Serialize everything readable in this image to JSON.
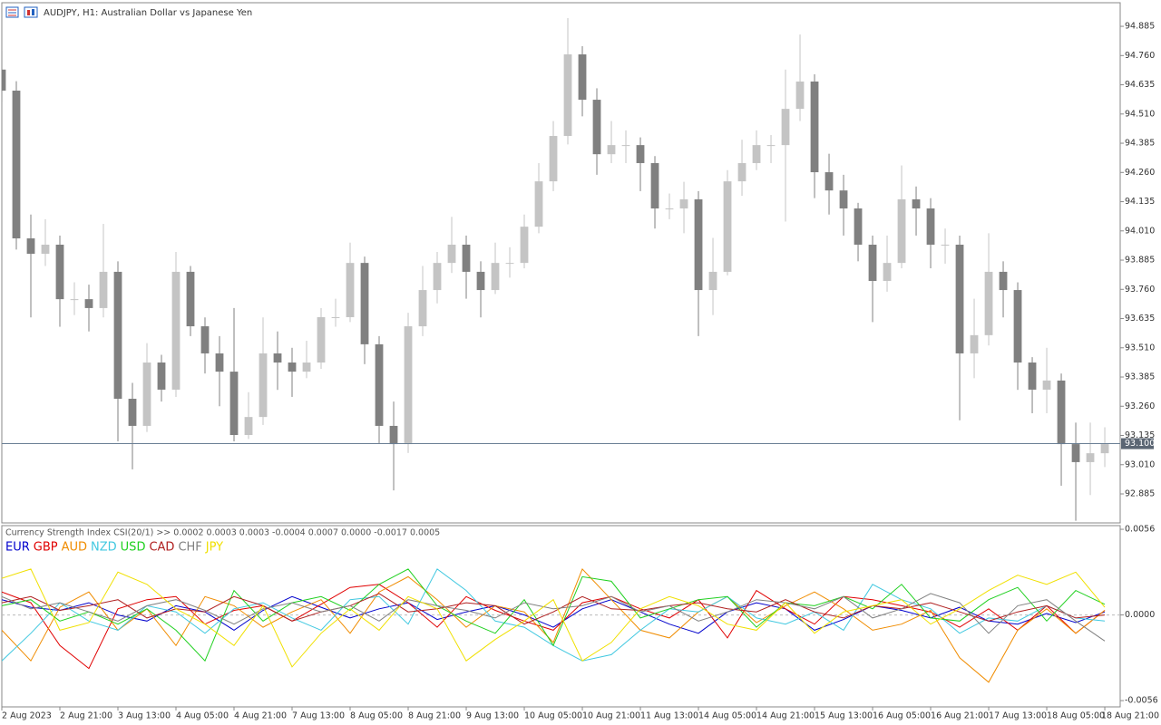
{
  "chart_data": [
    {
      "type": "candlestick",
      "title": "AUDJPY, H1:  Australian Dollar vs Japanese Yen",
      "up_color": "#c4c4c4",
      "down_color": "#808080",
      "open": [
        94.7,
        94.61,
        93.978,
        93.912,
        93.951,
        93.718,
        93.718,
        93.68,
        93.835,
        93.292,
        93.176,
        93.447,
        93.331,
        93.835,
        93.602,
        93.486,
        93.408,
        93.137,
        93.214,
        93.486,
        93.447,
        93.408,
        93.447,
        93.641,
        93.641,
        93.873,
        93.525,
        93.176,
        93.098,
        93.602,
        93.757,
        93.873,
        93.951,
        93.835,
        93.757,
        93.873,
        93.873,
        94.028,
        94.222,
        94.416,
        94.765,
        94.571,
        94.338,
        94.377,
        94.377,
        94.3,
        94.106,
        94.106,
        94.145,
        93.757,
        93.835,
        94.222,
        94.3,
        94.377,
        94.377,
        94.532,
        94.649,
        94.261,
        94.183,
        94.106,
        93.951,
        93.796,
        93.873,
        94.145,
        94.106,
        93.951,
        93.951,
        93.486,
        93.564,
        93.835,
        93.757,
        93.447,
        93.331,
        93.37,
        93.098,
        93.021,
        93.059
      ],
      "high": [
        94.78,
        94.65,
        94.08,
        94.06,
        93.99,
        93.79,
        93.78,
        94.04,
        93.88,
        93.36,
        93.53,
        93.48,
        93.92,
        93.86,
        93.64,
        93.56,
        93.68,
        93.32,
        93.64,
        93.58,
        93.51,
        93.54,
        93.68,
        93.72,
        93.96,
        93.9,
        93.56,
        93.28,
        93.66,
        93.86,
        93.92,
        94.07,
        93.99,
        93.88,
        93.96,
        93.94,
        94.08,
        94.3,
        94.48,
        94.92,
        94.8,
        94.62,
        94.48,
        94.44,
        94.41,
        94.33,
        94.17,
        94.22,
        94.18,
        93.98,
        94.27,
        94.4,
        94.44,
        94.42,
        94.7,
        94.85,
        94.68,
        94.34,
        94.25,
        94.13,
        93.99,
        93.99,
        94.29,
        94.2,
        94.15,
        94.02,
        93.99,
        93.72,
        94.0,
        93.88,
        93.79,
        93.47,
        93.51,
        93.4,
        93.19,
        93.19,
        93.17
      ],
      "low": [
        94.56,
        93.93,
        93.64,
        93.86,
        93.6,
        93.65,
        93.58,
        93.64,
        93.11,
        92.99,
        93.15,
        93.28,
        93.3,
        93.56,
        93.4,
        93.26,
        93.11,
        93.12,
        93.18,
        93.33,
        93.3,
        93.38,
        93.42,
        93.6,
        93.62,
        93.44,
        93.1,
        92.9,
        93.06,
        93.56,
        93.7,
        93.83,
        93.72,
        93.64,
        93.74,
        93.81,
        93.85,
        94.0,
        94.18,
        94.38,
        94.5,
        94.25,
        94.3,
        94.3,
        94.18,
        94.02,
        94.06,
        94.0,
        93.56,
        93.65,
        93.82,
        94.16,
        94.27,
        94.3,
        94.05,
        94.48,
        94.15,
        94.08,
        93.99,
        93.88,
        93.62,
        93.75,
        93.85,
        93.99,
        93.85,
        93.87,
        93.2,
        93.38,
        93.52,
        93.64,
        93.33,
        93.23,
        93.23,
        92.92,
        92.77,
        92.88,
        93.0
      ],
      "close": [
        94.61,
        93.978,
        93.912,
        93.951,
        93.718,
        93.718,
        93.68,
        93.835,
        93.292,
        93.176,
        93.447,
        93.331,
        93.835,
        93.602,
        93.486,
        93.408,
        93.137,
        93.214,
        93.486,
        93.447,
        93.408,
        93.447,
        93.641,
        93.641,
        93.873,
        93.525,
        93.176,
        93.098,
        93.602,
        93.757,
        93.873,
        93.951,
        93.835,
        93.757,
        93.873,
        93.873,
        94.028,
        94.222,
        94.416,
        94.765,
        94.571,
        94.338,
        94.377,
        94.377,
        94.3,
        94.106,
        94.106,
        94.145,
        93.757,
        93.835,
        94.222,
        94.3,
        94.377,
        94.377,
        94.532,
        94.649,
        94.261,
        94.183,
        94.106,
        93.951,
        93.796,
        93.873,
        94.145,
        94.106,
        93.951,
        93.951,
        93.486,
        93.564,
        93.835,
        93.757,
        93.447,
        93.331,
        93.37,
        93.098,
        93.021,
        93.059,
        93.098
      ],
      "xlim": [
        0,
        77.06
      ],
      "ylim": [
        92.761,
        94.986
      ],
      "yticks": [
        94.885,
        {
          "value": 94.76,
          "label": "94.760"
        },
        94.635,
        {
          "value": 94.51,
          "label": "94.510"
        },
        94.385,
        {
          "value": 94.26,
          "label": "94.260"
        },
        94.135,
        {
          "value": 94.01,
          "label": "94.010"
        },
        93.885,
        {
          "value": 93.76,
          "label": "93.760"
        },
        93.635,
        {
          "value": 93.51,
          "label": "93.510"
        },
        93.385,
        {
          "value": 93.26,
          "label": "93.260"
        },
        93.135,
        {
          "value": 93.01,
          "label": "93.010"
        },
        92.885
      ],
      "hline": {
        "value": 93.1,
        "label": "93.100"
      },
      "xticks": [
        {
          "value": 0,
          "label": "2 Aug 2023"
        },
        {
          "value": 4,
          "label": "2 Aug 21:00"
        },
        {
          "value": 8,
          "label": "3 Aug 13:00"
        },
        {
          "value": 12,
          "label": "4 Aug 05:00"
        },
        {
          "value": 16,
          "label": "4 Aug 21:00"
        },
        {
          "value": 20,
          "label": "7 Aug 13:00"
        },
        {
          "value": 24,
          "label": "8 Aug 05:00"
        },
        {
          "value": 28,
          "label": "8 Aug 21:00"
        },
        {
          "value": 32,
          "label": "9 Aug 13:00"
        },
        {
          "value": 36,
          "label": "10 Aug 05:00"
        },
        {
          "value": 40,
          "label": "10 Aug 21:00"
        },
        {
          "value": 44,
          "label": "11 Aug 13:00"
        },
        {
          "value": 48,
          "label": "14 Aug 05:00"
        },
        {
          "value": 52,
          "label": "14 Aug 21:00"
        },
        {
          "value": 56,
          "label": "15 Aug 13:00"
        },
        {
          "value": 60,
          "label": "16 Aug 05:00"
        },
        {
          "value": 64,
          "label": "16 Aug 21:00"
        },
        {
          "value": 68,
          "label": "17 Aug 13:00"
        },
        {
          "value": 72,
          "label": "18 Aug 05:00"
        },
        {
          "value": 76,
          "label": "18 Aug 21:00"
        }
      ]
    },
    {
      "type": "line",
      "title": "Currency Strength Index CSI(20/1) >> 0.0002 0.0003 0.0003 -0.0004 0.0007 0.0000 -0.0017 0.0005",
      "x": [
        0,
        2,
        4,
        6,
        8,
        10,
        12,
        14,
        16,
        18,
        20,
        22,
        24,
        26,
        28,
        30,
        32,
        34,
        36,
        38,
        40,
        42,
        44,
        46,
        48,
        50,
        52,
        54,
        56,
        58,
        60,
        62,
        64,
        66,
        68,
        70,
        72,
        74,
        76
      ],
      "xlim": [
        0,
        77.06
      ],
      "ylim": [
        -0.00601,
        0.00584
      ],
      "yticks": [
        0.0056,
        {
          "value": 0,
          "label": "0.0000"
        },
        -0.0056
      ],
      "series": [
        {
          "name": "EUR",
          "color": "#0000cc",
          "values": [
            0.001,
            0.0005,
            0.0003,
            0.0008,
            0.0,
            -0.0004,
            0.0006,
            0.0002,
            -0.001,
            0.0003,
            0.0012,
            0.0005,
            -0.0002,
            0.0004,
            0.0008,
            -0.0003,
            0.0002,
            0.0006,
            0.0,
            -0.0008,
            0.0004,
            0.001,
            0.0002,
            -0.0006,
            -0.0012,
            0.0002,
            0.0008,
            0.0004,
            -0.001,
            -0.0003,
            0.0006,
            0.0003,
            -0.0002,
            0.0005,
            -0.0004,
            -0.0006,
            0.0001,
            -0.0005,
            0.0002
          ]
        },
        {
          "name": "GBP",
          "color": "#e00000",
          "values": [
            0.0015,
            0.0008,
            -0.002,
            -0.0035,
            0.0004,
            0.001,
            0.0012,
            -0.0006,
            0.0003,
            0.0006,
            -0.0004,
            0.0007,
            0.0018,
            0.002,
            0.0008,
            -0.0008,
            0.0012,
            0.0003,
            -0.0004,
            -0.001,
            0.0008,
            0.0012,
            0.0004,
            -0.0002,
            0.001,
            -0.0015,
            0.0016,
            0.0004,
            -0.0006,
            0.0012,
            0.001,
            0.0006,
            0.0002,
            -0.0008,
            0.0004,
            -0.001,
            0.0006,
            -0.0012,
            0.0003
          ]
        },
        {
          "name": "AUD",
          "color": "#f08c00",
          "values": [
            -0.001,
            -0.003,
            0.0005,
            0.0015,
            -0.001,
            0.0004,
            -0.002,
            0.0012,
            0.0006,
            -0.0008,
            0.0002,
            0.001,
            -0.0012,
            0.0015,
            0.0025,
            0.001,
            -0.0008,
            0.0006,
            0.0002,
            -0.0018,
            0.003,
            0.001,
            -0.001,
            -0.0015,
            0.0002,
            0.0012,
            -0.0005,
            0.0006,
            0.0015,
            0.0004,
            -0.001,
            -0.0006,
            0.0003,
            -0.0028,
            -0.0044,
            -0.001,
            0.0004,
            -0.0012,
            0.0003
          ]
        },
        {
          "name": "NZD",
          "color": "#40c8e0",
          "values": [
            -0.003,
            -0.0012,
            0.0008,
            -0.0004,
            -0.001,
            0.0006,
            0.0002,
            -0.0012,
            0.0004,
            0.0008,
            -0.0002,
            -0.001,
            0.001,
            0.0012,
            -0.0006,
            0.003,
            0.0016,
            -0.0004,
            -0.0008,
            -0.002,
            -0.003,
            -0.0026,
            -0.001,
            0.0004,
            0.0002,
            0.0012,
            -0.0002,
            -0.0006,
            0.0002,
            -0.001,
            0.002,
            0.001,
            0.0004,
            -0.0012,
            -0.0002,
            -0.0004,
            0.0006,
            -0.0002,
            -0.0004
          ]
        },
        {
          "name": "USD",
          "color": "#20d020",
          "values": [
            0.0006,
            0.001,
            -0.0004,
            0.0002,
            -0.0006,
            0.0004,
            -0.001,
            -0.003,
            0.0016,
            -0.0004,
            0.0008,
            0.0012,
            0.0003,
            0.002,
            0.003,
            0.0006,
            -0.0004,
            -0.0012,
            0.001,
            -0.002,
            0.0025,
            0.0022,
            -0.0002,
            0.0004,
            0.001,
            0.0012,
            -0.0008,
            0.0008,
            0.0006,
            0.0012,
            0.0004,
            0.002,
            -0.0002,
            -0.0004,
            0.001,
            0.0018,
            -0.0004,
            0.0016,
            0.0007
          ]
        },
        {
          "name": "CAD",
          "color": "#b02020",
          "values": [
            0.0008,
            0.0012,
            0.0003,
            0.0006,
            0.001,
            -0.0002,
            0.0004,
            0.0002,
            0.0012,
            0.0006,
            -0.0004,
            0.0002,
            0.0006,
            0.0014,
            0.0002,
            0.0004,
            0.0008,
            0.0006,
            -0.0006,
            0.0002,
            0.0012,
            0.0004,
            0.0003,
            0.0006,
            0.0008,
            0.0004,
            0.0002,
            0.001,
            0.0002,
            -0.0002,
            0.0006,
            0.0004,
            0.0008,
            0.0002,
            -0.0004,
            0.0002,
            0.0006,
            -0.0002,
            0
          ]
        },
        {
          "name": "CHF",
          "color": "#808080",
          "values": [
            0.0012,
            0.0004,
            0.0008,
            0.0002,
            -0.0004,
            0.0006,
            0.001,
            0.0003,
            -0.0006,
            0.0004,
            0.0008,
            0.0002,
            0.0006,
            -0.0004,
            0.001,
            0.0006,
            0.0003,
            -0.0002,
            0.0008,
            0.0004,
            0.0006,
            0.0012,
            0.0002,
            0.0006,
            -0.0004,
            0.0002,
            0.001,
            0.0008,
            0.0004,
            0.0012,
            -0.0002,
            0.0004,
            0.0014,
            0.0008,
            -0.0012,
            0.0006,
            0.001,
            -0.0004,
            -0.0017
          ]
        },
        {
          "name": "JPY",
          "color": "#f0e000",
          "values": [
            0.0024,
            0.003,
            -0.001,
            -0.0005,
            0.0028,
            0.002,
            0.0004,
            -0.0006,
            -0.002,
            0.0006,
            -0.0034,
            -0.0012,
            0.0004,
            -0.001,
            0.0012,
            0.0004,
            -0.003,
            -0.0016,
            -0.0004,
            0.001,
            -0.003,
            -0.0018,
            0.0004,
            0.0012,
            0.0006,
            -0.0006,
            -0.001,
            0.0008,
            -0.0012,
            0.0002,
            0.0006,
            0.001,
            -0.0006,
            0.0004,
            0.0016,
            0.0026,
            0.002,
            0.0028,
            0.0005
          ]
        }
      ]
    }
  ]
}
